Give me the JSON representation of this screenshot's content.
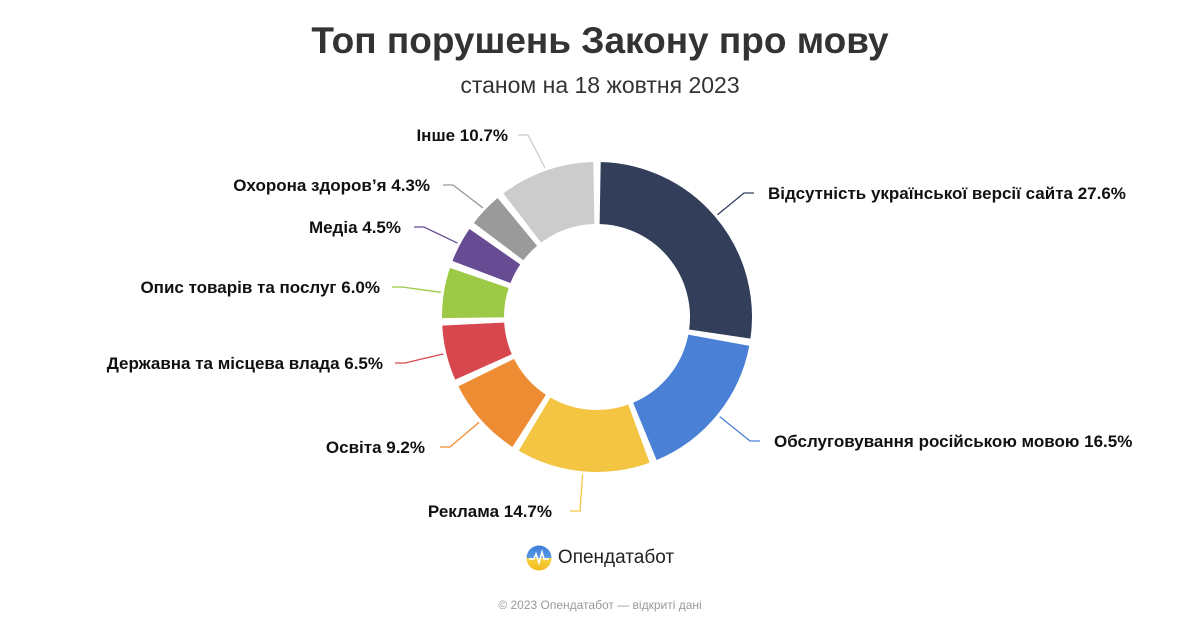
{
  "title": "Топ порушень Закону про мову",
  "subtitle": "станом на 18 жовтня 2023",
  "brand": {
    "name": "Опендатабот"
  },
  "footer": "© 2023 Опендатабот — відкриті дані",
  "chart_data": {
    "type": "pie",
    "title": "Топ порушень Закону про мову",
    "subtitle": "станом на 18 жовтня 2023",
    "unit": "%",
    "slices": [
      {
        "label": "Відсутність української версії сайта",
        "value": 27.6,
        "color": "#323e5a"
      },
      {
        "label": "Обслуговування російською мовою",
        "value": 16.5,
        "color": "#4a80d6"
      },
      {
        "label": "Реклама",
        "value": 14.7,
        "color": "#f4c542"
      },
      {
        "label": "Освіта",
        "value": 9.2,
        "color": "#ee8c33"
      },
      {
        "label": "Державна та місцева влада",
        "value": 6.5,
        "color": "#d8474d"
      },
      {
        "label": "Опис товарів та послуг",
        "value": 6.0,
        "color": "#9cc946"
      },
      {
        "label": "Медіа",
        "value": 4.5,
        "color": "#674c94"
      },
      {
        "label": "Охорона здоров’я",
        "value": 4.3,
        "color": "#9a9a9a"
      },
      {
        "label": "Інше",
        "value": 10.7,
        "color": "#cccccc"
      }
    ]
  }
}
